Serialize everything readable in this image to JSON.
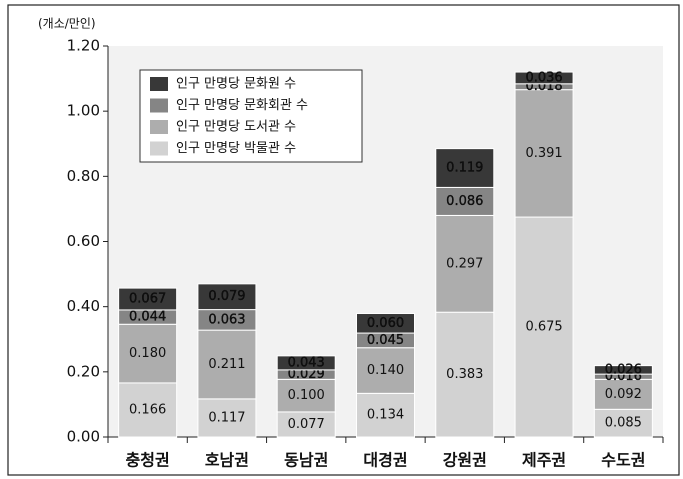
{
  "chart_data": {
    "type": "stacked_bar",
    "y_axis_label": "(개소/만인)",
    "categories": [
      "충청권",
      "호남권",
      "동남권",
      "대경권",
      "강원권",
      "제주권",
      "수도권"
    ],
    "series": [
      {
        "name": "인구 만명당 박물관 수",
        "color": "#d2d2d2",
        "values": [
          0.166,
          0.117,
          0.077,
          0.134,
          0.383,
          0.675,
          0.085
        ],
        "value_labels": [
          "0.166",
          "0.117",
          "0.077",
          "0.134",
          "0.383",
          "0.675",
          "0.085"
        ]
      },
      {
        "name": "인구 만명당 도서관 수",
        "color": "#adadad",
        "values": [
          0.18,
          0.211,
          0.1,
          0.14,
          0.297,
          0.391,
          0.092
        ],
        "value_labels": [
          "0.180",
          "0.211",
          "0.100",
          "0.140",
          "0.297",
          "0.391",
          "0.092"
        ]
      },
      {
        "name": "인구 만명당 문화회관 수",
        "color": "#858585",
        "values": [
          0.044,
          0.063,
          0.029,
          0.045,
          0.086,
          0.018,
          0.016
        ],
        "value_labels": [
          "0.044",
          "0.063",
          "0.029",
          "0.045",
          "0.086",
          "0.018",
          "0.016"
        ]
      },
      {
        "name": "인구 만명당 문화원 수",
        "color": "#383838",
        "values": [
          0.067,
          0.079,
          0.043,
          0.06,
          0.119,
          0.036,
          0.026
        ],
        "value_labels": [
          "0.067",
          "0.079",
          "0.043",
          "0.060",
          "0.119",
          "0.036",
          "0.026"
        ]
      }
    ],
    "ylim": [
      0,
      1.2
    ],
    "yticks": [
      {
        "value": 0,
        "label": "0.00"
      },
      {
        "value": 0.2,
        "label": "0.20"
      },
      {
        "value": 0.4,
        "label": "0.40"
      },
      {
        "value": 0.6,
        "label": "0.60"
      },
      {
        "value": 0.8,
        "label": "0.80"
      },
      {
        "value": 1,
        "label": "1.00"
      },
      {
        "value": 1.2,
        "label": "1.20"
      }
    ],
    "legend": "top-left"
  }
}
